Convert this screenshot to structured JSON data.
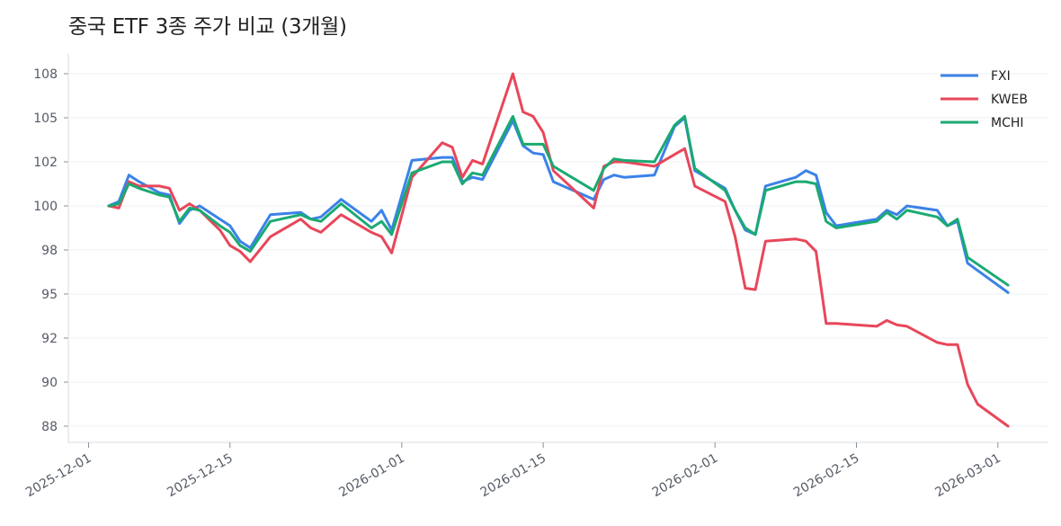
{
  "chart_data": {
    "type": "line",
    "title": "중국 ETF 3종 주가 비교 (3개월)",
    "xlabel": "",
    "ylabel": "",
    "x_axis": {
      "type": "date",
      "range": [
        "2025-11-29",
        "2026-03-06"
      ],
      "ticks": [
        "2025-12-01",
        "2025-12-15",
        "2026-01-01",
        "2026-01-15",
        "2026-02-01",
        "2026-02-15",
        "2026-03-01"
      ]
    },
    "y_axis": {
      "range": [
        86.5,
        109.5
      ],
      "ticks": [
        88,
        90,
        92,
        95,
        98,
        100,
        102,
        105,
        108
      ],
      "tick_labels": [
        "88",
        "90",
        "92",
        "95",
        "98",
        "100",
        "102",
        "105",
        "108"
      ]
    },
    "grid": "horizontal",
    "legend_position": "top-right",
    "series": [
      {
        "name": "FXI",
        "color": "#3b82e8",
        "points": [
          [
            "2025-12-03",
            100.0
          ],
          [
            "2025-12-04",
            100.2
          ],
          [
            "2025-12-05",
            101.4
          ],
          [
            "2025-12-06",
            101.1
          ],
          [
            "2025-12-08",
            100.6
          ],
          [
            "2025-12-09",
            100.5
          ],
          [
            "2025-12-10",
            99.2
          ],
          [
            "2025-12-11",
            99.8
          ],
          [
            "2025-12-12",
            100.0
          ],
          [
            "2025-12-14",
            99.4
          ],
          [
            "2025-12-15",
            99.1
          ],
          [
            "2025-12-16",
            98.4
          ],
          [
            "2025-12-17",
            98.1
          ],
          [
            "2025-12-19",
            99.6
          ],
          [
            "2025-12-22",
            99.7
          ],
          [
            "2025-12-23",
            99.4
          ],
          [
            "2025-12-24",
            99.5
          ],
          [
            "2025-12-26",
            100.3
          ],
          [
            "2025-12-29",
            99.3
          ],
          [
            "2025-12-30",
            99.8
          ],
          [
            "2025-12-31",
            98.9
          ],
          [
            "2026-01-02",
            102.1
          ],
          [
            "2026-01-05",
            102.3
          ],
          [
            "2026-01-06",
            102.3
          ],
          [
            "2026-01-07",
            101.1
          ],
          [
            "2026-01-08",
            101.3
          ],
          [
            "2026-01-09",
            101.2
          ],
          [
            "2026-01-12",
            104.8
          ],
          [
            "2026-01-13",
            103.1
          ],
          [
            "2026-01-14",
            102.6
          ],
          [
            "2026-01-15",
            102.5
          ],
          [
            "2026-01-16",
            101.1
          ],
          [
            "2026-01-20",
            100.3
          ],
          [
            "2026-01-21",
            101.2
          ],
          [
            "2026-01-22",
            101.4
          ],
          [
            "2026-01-23",
            101.3
          ],
          [
            "2026-01-26",
            101.4
          ],
          [
            "2026-01-28",
            104.4
          ],
          [
            "2026-01-29",
            105.0
          ],
          [
            "2026-01-30",
            101.6
          ],
          [
            "2026-02-02",
            100.8
          ],
          [
            "2026-02-03",
            99.8
          ],
          [
            "2026-02-04",
            98.9
          ],
          [
            "2026-02-05",
            98.7
          ],
          [
            "2026-02-06",
            100.9
          ],
          [
            "2026-02-09",
            101.3
          ],
          [
            "2026-02-10",
            101.6
          ],
          [
            "2026-02-11",
            101.4
          ],
          [
            "2026-02-12",
            99.7
          ],
          [
            "2026-02-13",
            99.1
          ],
          [
            "2026-02-17",
            99.4
          ],
          [
            "2026-02-18",
            99.8
          ],
          [
            "2026-02-19",
            99.6
          ],
          [
            "2026-02-20",
            100.0
          ],
          [
            "2026-02-23",
            99.8
          ],
          [
            "2026-02-24",
            99.1
          ],
          [
            "2026-02-25",
            99.3
          ],
          [
            "2026-02-26",
            97.1
          ],
          [
            "2026-03-02",
            95.1
          ]
        ]
      },
      {
        "name": "KWEB",
        "color": "#e8475a",
        "points": [
          [
            "2025-12-03",
            100.0
          ],
          [
            "2025-12-04",
            99.9
          ],
          [
            "2025-12-05",
            101.1
          ],
          [
            "2025-12-06",
            100.9
          ],
          [
            "2025-12-08",
            100.9
          ],
          [
            "2025-12-09",
            100.8
          ],
          [
            "2025-12-10",
            99.8
          ],
          [
            "2025-12-11",
            100.1
          ],
          [
            "2025-12-12",
            99.8
          ],
          [
            "2025-12-14",
            98.9
          ],
          [
            "2025-12-15",
            98.2
          ],
          [
            "2025-12-16",
            97.9
          ],
          [
            "2025-12-17",
            97.2
          ],
          [
            "2025-12-19",
            98.6
          ],
          [
            "2025-12-22",
            99.4
          ],
          [
            "2025-12-23",
            99.0
          ],
          [
            "2025-12-24",
            98.8
          ],
          [
            "2025-12-26",
            99.6
          ],
          [
            "2025-12-29",
            98.8
          ],
          [
            "2025-12-30",
            98.6
          ],
          [
            "2025-12-31",
            97.8
          ],
          [
            "2026-01-02",
            101.3
          ],
          [
            "2026-01-05",
            103.3
          ],
          [
            "2026-01-06",
            103.0
          ],
          [
            "2026-01-07",
            101.3
          ],
          [
            "2026-01-08",
            102.1
          ],
          [
            "2026-01-09",
            101.9
          ],
          [
            "2026-01-12",
            108.0
          ],
          [
            "2026-01-13",
            105.4
          ],
          [
            "2026-01-14",
            105.1
          ],
          [
            "2026-01-15",
            104.0
          ],
          [
            "2026-01-16",
            101.6
          ],
          [
            "2026-01-20",
            99.9
          ],
          [
            "2026-01-21",
            101.8
          ],
          [
            "2026-01-22",
            102.0
          ],
          [
            "2026-01-23",
            102.0
          ],
          [
            "2026-01-26",
            101.8
          ],
          [
            "2026-01-28",
            102.5
          ],
          [
            "2026-01-29",
            102.9
          ],
          [
            "2026-01-30",
            100.9
          ],
          [
            "2026-02-02",
            100.2
          ],
          [
            "2026-02-03",
            98.6
          ],
          [
            "2026-02-04",
            95.4
          ],
          [
            "2026-02-05",
            95.3
          ],
          [
            "2026-02-06",
            98.4
          ],
          [
            "2026-02-09",
            98.5
          ],
          [
            "2026-02-10",
            98.4
          ],
          [
            "2026-02-11",
            97.9
          ],
          [
            "2026-02-12",
            93.0
          ],
          [
            "2026-02-13",
            93.0
          ],
          [
            "2026-02-17",
            92.8
          ],
          [
            "2026-02-18",
            93.2
          ],
          [
            "2026-02-19",
            92.9
          ],
          [
            "2026-02-20",
            92.8
          ],
          [
            "2026-02-23",
            91.8
          ],
          [
            "2026-02-24",
            91.7
          ],
          [
            "2026-02-25",
            91.7
          ],
          [
            "2026-02-26",
            89.9
          ],
          [
            "2026-02-27",
            89.0
          ],
          [
            "2026-03-02",
            88.0
          ]
        ]
      },
      {
        "name": "MCHI",
        "color": "#1aaa72",
        "points": [
          [
            "2025-12-03",
            100.0
          ],
          [
            "2025-12-04",
            100.1
          ],
          [
            "2025-12-05",
            101.0
          ],
          [
            "2025-12-06",
            100.8
          ],
          [
            "2025-12-08",
            100.5
          ],
          [
            "2025-12-09",
            100.4
          ],
          [
            "2025-12-10",
            99.3
          ],
          [
            "2025-12-11",
            99.9
          ],
          [
            "2025-12-12",
            99.8
          ],
          [
            "2025-12-14",
            99.1
          ],
          [
            "2025-12-15",
            98.8
          ],
          [
            "2025-12-16",
            98.2
          ],
          [
            "2025-12-17",
            97.9
          ],
          [
            "2025-12-19",
            99.3
          ],
          [
            "2025-12-22",
            99.6
          ],
          [
            "2025-12-23",
            99.4
          ],
          [
            "2025-12-24",
            99.3
          ],
          [
            "2025-12-26",
            100.1
          ],
          [
            "2025-12-29",
            99.0
          ],
          [
            "2025-12-30",
            99.3
          ],
          [
            "2025-12-31",
            98.7
          ],
          [
            "2026-01-02",
            101.5
          ],
          [
            "2026-01-05",
            102.0
          ],
          [
            "2026-01-06",
            102.0
          ],
          [
            "2026-01-07",
            101.0
          ],
          [
            "2026-01-08",
            101.5
          ],
          [
            "2026-01-09",
            101.4
          ],
          [
            "2026-01-12",
            105.1
          ],
          [
            "2026-01-13",
            103.2
          ],
          [
            "2026-01-14",
            103.2
          ],
          [
            "2026-01-15",
            103.2
          ],
          [
            "2026-01-16",
            101.8
          ],
          [
            "2026-01-20",
            100.7
          ],
          [
            "2026-01-21",
            101.7
          ],
          [
            "2026-01-22",
            102.2
          ],
          [
            "2026-01-23",
            102.1
          ],
          [
            "2026-01-26",
            102.0
          ],
          [
            "2026-01-28",
            104.5
          ],
          [
            "2026-01-29",
            105.1
          ],
          [
            "2026-01-30",
            101.7
          ],
          [
            "2026-02-02",
            100.7
          ],
          [
            "2026-02-03",
            99.8
          ],
          [
            "2026-02-04",
            99.0
          ],
          [
            "2026-02-05",
            98.7
          ],
          [
            "2026-02-06",
            100.7
          ],
          [
            "2026-02-09",
            101.1
          ],
          [
            "2026-02-10",
            101.1
          ],
          [
            "2026-02-11",
            101.0
          ],
          [
            "2026-02-12",
            99.3
          ],
          [
            "2026-02-13",
            99.0
          ],
          [
            "2026-02-17",
            99.3
          ],
          [
            "2026-02-18",
            99.7
          ],
          [
            "2026-02-19",
            99.4
          ],
          [
            "2026-02-20",
            99.8
          ],
          [
            "2026-02-23",
            99.5
          ],
          [
            "2026-02-24",
            99.1
          ],
          [
            "2026-02-25",
            99.4
          ],
          [
            "2026-02-26",
            97.5
          ],
          [
            "2026-03-02",
            95.6
          ]
        ]
      }
    ]
  }
}
